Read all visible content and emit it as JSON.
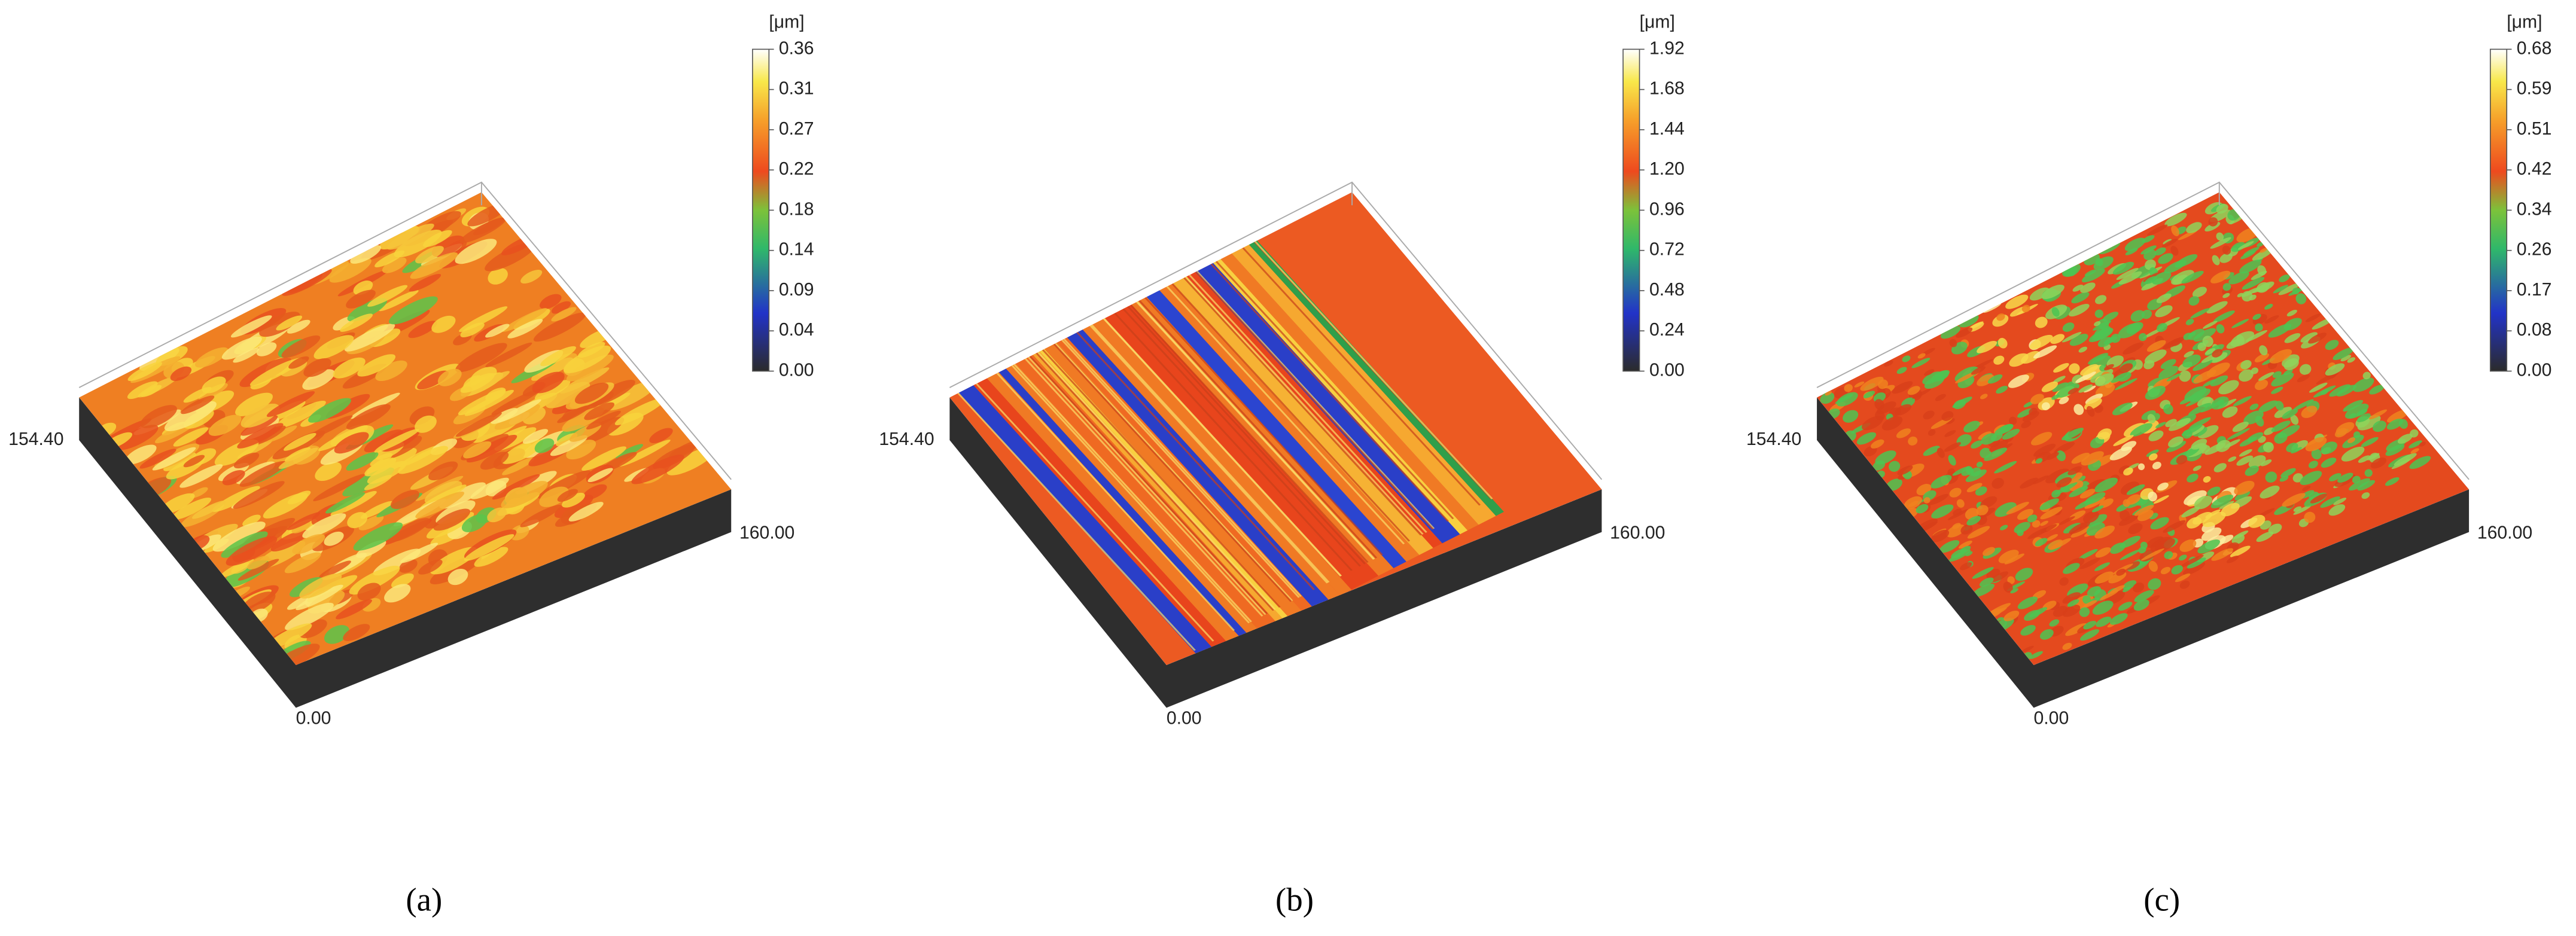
{
  "panels": [
    {
      "unit": "[μm]",
      "ticks": [
        "0.36",
        "0.31",
        "0.27",
        "0.22",
        "0.18",
        "0.14",
        "0.09",
        "0.04",
        "0.00"
      ],
      "left_label": "154.40",
      "right_label": "160.00",
      "front_label": "0.00",
      "caption": "(a)"
    },
    {
      "unit": "[μm]",
      "ticks": [
        "1.92",
        "1.68",
        "1.44",
        "1.20",
        "0.96",
        "0.72",
        "0.48",
        "0.24",
        "0.00"
      ],
      "left_label": "154.40",
      "right_label": "160.00",
      "front_label": "0.00",
      "caption": "(b)"
    },
    {
      "unit": "[μm]",
      "ticks": [
        "0.68",
        "0.59",
        "0.51",
        "0.42",
        "0.34",
        "0.26",
        "0.17",
        "0.08",
        "0.00"
      ],
      "left_label": "154.40",
      "right_label": "160.00",
      "front_label": "0.00",
      "caption": "(c)"
    }
  ]
}
